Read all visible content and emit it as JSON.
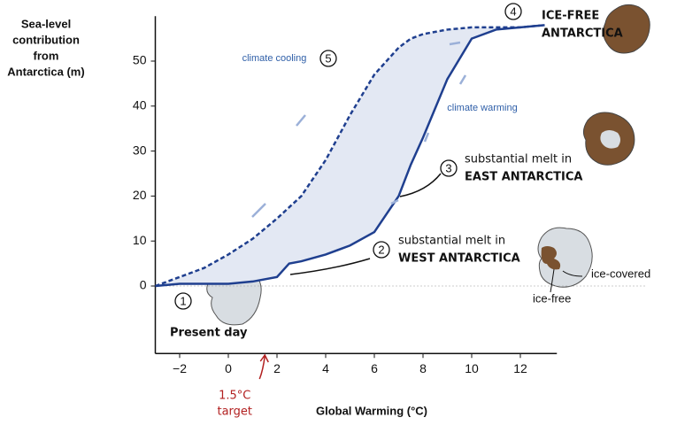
{
  "chart_data": {
    "type": "line",
    "ylabel": [
      "Sea-level",
      "contribution",
      "from",
      "Antarctica (m)"
    ],
    "xlabel": "Global Warming (°C)",
    "x": [
      -3,
      -2,
      -1,
      0,
      1,
      2,
      2.5,
      3,
      4,
      5,
      6,
      7,
      7.5,
      8,
      9,
      10,
      11,
      12,
      13
    ],
    "series": [
      {
        "name": "climate warming",
        "color": "#1f3f8f",
        "dashed": false,
        "values": [
          0,
          0.5,
          0.5,
          0.5,
          1,
          2,
          5,
          5.5,
          7,
          9,
          12,
          20,
          27,
          33,
          46,
          55,
          57,
          57.5,
          58
        ]
      },
      {
        "name": "climate cooling",
        "color": "#1f3f8f",
        "dashed": true,
        "values": [
          0,
          2,
          4,
          7,
          10.5,
          15,
          17.5,
          20,
          28,
          38,
          47,
          53,
          55,
          56,
          57,
          57.5,
          57.5,
          57.5,
          58
        ]
      }
    ],
    "fill_color": "#e3e8f3",
    "xlim": [
      -3,
      13.5
    ],
    "ylim": [
      -15,
      60
    ],
    "xticks": [
      {
        "value": -2,
        "label": "−2"
      },
      0,
      2,
      4,
      6,
      8,
      10,
      12
    ],
    "yticks": [
      0,
      10,
      20,
      30,
      40,
      50
    ],
    "stages": [
      {
        "number": "1",
        "lines": [
          "Present day"
        ]
      },
      {
        "number": "2",
        "lines": [
          "substantial melt in",
          "WEST ANTARCTICA"
        ]
      },
      {
        "number": "3",
        "lines": [
          "substantial melt in",
          "EAST ANTARCTICA"
        ]
      },
      {
        "number": "4",
        "lines": [
          "ICE-FREE",
          "ANTARCTICA"
        ]
      },
      {
        "number": "5",
        "lines": []
      }
    ],
    "map_labels": [
      "ice-covered",
      "ice-free"
    ],
    "target": {
      "value": 1.5,
      "lines": [
        "1.5°C",
        "target"
      ]
    }
  }
}
